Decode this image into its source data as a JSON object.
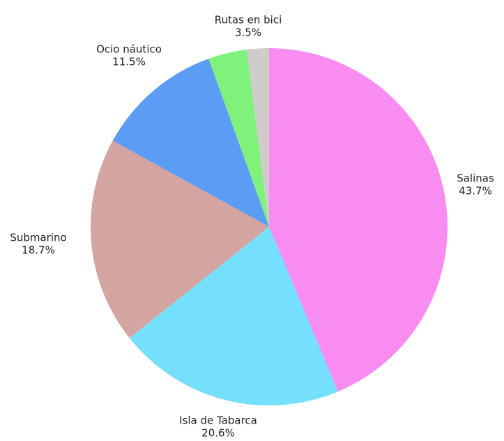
{
  "chart_data": {
    "type": "pie",
    "categories": [
      "Salinas",
      "Isla de Tabarca",
      "Submarino",
      "Ocio náutico",
      "Rutas en bici",
      null
    ],
    "values": [
      43.7,
      20.6,
      18.7,
      11.5,
      3.5,
      2.0
    ],
    "value_labels": [
      "43.7%",
      "20.6%",
      "18.7%",
      "11.5%",
      "3.5%",
      null
    ],
    "colors": [
      "#f98cf0",
      "#74e0fc",
      "#d4a5a0",
      "#5b9cf5",
      "#7ef27a",
      "#d0cccc"
    ]
  }
}
